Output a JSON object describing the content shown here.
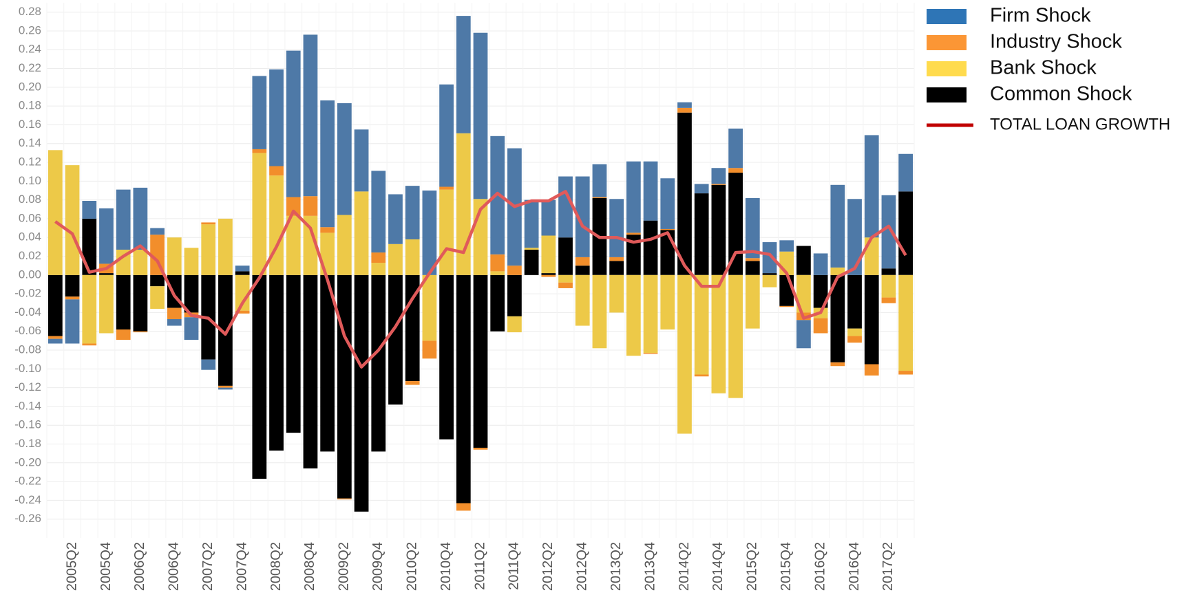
{
  "chart_data": {
    "type": "bar",
    "stacked": true,
    "grid": true,
    "categories": [
      null,
      "2005Q2",
      null,
      "2005Q4",
      null,
      "2006Q2",
      null,
      "2006Q4",
      null,
      "2007Q2",
      null,
      "2007Q4",
      null,
      "2008Q2",
      null,
      "2008Q4",
      null,
      "2009Q2",
      null,
      "2009Q4",
      null,
      "2010Q2",
      null,
      "2010Q4",
      null,
      "2011Q2",
      null,
      "2011Q4",
      null,
      "2012Q2",
      null,
      "2012Q4",
      null,
      "2013Q2",
      null,
      "2013Q4",
      null,
      "2014Q2",
      null,
      "2014Q4",
      null,
      "2015Q2",
      null,
      "2015Q4",
      null,
      "2016Q2",
      null,
      "2016Q4",
      null,
      "2017Q2",
      null
    ],
    "ylim": [
      -0.28,
      0.29
    ],
    "yticks": [
      {
        "value": -0.26,
        "label": "-0.26"
      },
      {
        "value": -0.24,
        "label": "-0.24"
      },
      {
        "value": -0.22,
        "label": "-0.22"
      },
      {
        "value": -0.2,
        "label": "-0.20"
      },
      {
        "value": -0.18,
        "label": "-0.18"
      },
      {
        "value": -0.16,
        "label": "-0.16"
      },
      {
        "value": -0.14,
        "label": "-0.14"
      },
      {
        "value": -0.12,
        "label": "-0.12"
      },
      {
        "value": -0.1,
        "label": "-0.10"
      },
      {
        "value": -0.08,
        "label": "-0.08"
      },
      {
        "value": -0.06,
        "label": "-0.06"
      },
      {
        "value": -0.04,
        "label": "-0.04"
      },
      {
        "value": -0.02,
        "label": "-0.02"
      },
      {
        "value": 0,
        "label": "0.00"
      },
      {
        "value": 0.02,
        "label": "0.02"
      },
      {
        "value": 0.04,
        "label": "0.04"
      },
      {
        "value": 0.06,
        "label": "0.06"
      },
      {
        "value": 0.08,
        "label": "0.08"
      },
      {
        "value": 0.1,
        "label": "0.10"
      },
      {
        "value": 0.12,
        "label": "0.12"
      },
      {
        "value": 0.14,
        "label": "0.14"
      },
      {
        "value": 0.16,
        "label": "0.16"
      },
      {
        "value": 0.18,
        "label": "0.18"
      },
      {
        "value": 0.2,
        "label": "0.20"
      },
      {
        "value": 0.22,
        "label": "0.22"
      },
      {
        "value": 0.24,
        "label": "0.24"
      },
      {
        "value": 0.26,
        "label": "0.26"
      },
      {
        "value": 0.28,
        "label": "0.28"
      }
    ],
    "series": [
      {
        "name": "Firm Shock",
        "color": "#4e79a7",
        "legend_color": "#2e75b6",
        "values": [
          -0.005,
          -0.047,
          0.019,
          0.059,
          0.064,
          0.066,
          0.007,
          -0.007,
          -0.024,
          -0.011,
          -0.002,
          0.006,
          0.078,
          0.103,
          0.156,
          0.172,
          0.135,
          0.119,
          0.066,
          0.087,
          0.053,
          0.057,
          0.09,
          0.109,
          0.125,
          0.177,
          0.126,
          0.125,
          0.051,
          0.038,
          0.065,
          0.086,
          0.035,
          0.062,
          0.076,
          0.063,
          0.054,
          0.006,
          0.01,
          0.017,
          0.042,
          0.064,
          0.033,
          0.012,
          -0.03,
          0.023,
          0.088,
          0.081,
          0.109,
          0.078,
          0.04
        ]
      },
      {
        "name": "Industry Shock",
        "color": "#f28e2b",
        "legend_color": "#fb9635",
        "values": [
          -0.003,
          -0.003,
          -0.002,
          0.01,
          -0.011,
          -0.001,
          0.043,
          -0.012,
          -0.005,
          0.002,
          -0.002,
          -0.003,
          0.004,
          0.01,
          0.02,
          0.021,
          0.006,
          -0.001,
          0,
          0.011,
          0,
          -0.004,
          -0.019,
          0.003,
          -0.008,
          -0.002,
          0.018,
          0.01,
          0,
          -0.002,
          -0.006,
          0.009,
          0.001,
          0.004,
          0.002,
          -0.001,
          0.001,
          0.005,
          -0.002,
          0.001,
          0.005,
          0.003,
          0,
          -0.001,
          -0.008,
          -0.016,
          -0.004,
          -0.007,
          -0.012,
          -0.006,
          -0.004
        ]
      },
      {
        "name": "Bank Shock",
        "color": "#edc948",
        "legend_color": "#ffdb4d",
        "values": [
          0.133,
          0.117,
          -0.073,
          -0.062,
          0.027,
          0.027,
          -0.024,
          0.04,
          0.029,
          0.054,
          0.06,
          -0.038,
          0.13,
          0.106,
          0.063,
          0.063,
          0.045,
          0.064,
          0.089,
          0.013,
          0.033,
          0.038,
          -0.07,
          0.091,
          0.151,
          0.081,
          0.004,
          -0.017,
          0.002,
          0.04,
          -0.008,
          -0.054,
          -0.078,
          -0.04,
          -0.086,
          -0.083,
          -0.058,
          -0.169,
          -0.106,
          -0.126,
          -0.131,
          -0.057,
          -0.013,
          0.025,
          -0.04,
          -0.011,
          0.008,
          -0.008,
          0.04,
          -0.024,
          -0.102
        ]
      },
      {
        "name": "Common Shock",
        "color": "#000000",
        "legend_color": "#000000",
        "values": [
          -0.065,
          -0.023,
          0.06,
          0.002,
          -0.058,
          -0.06,
          -0.012,
          -0.035,
          -0.04,
          -0.09,
          -0.118,
          0.004,
          -0.217,
          -0.187,
          -0.168,
          -0.206,
          -0.188,
          -0.238,
          -0.252,
          -0.188,
          -0.138,
          -0.113,
          0,
          -0.175,
          -0.243,
          -0.184,
          -0.06,
          -0.044,
          0.027,
          0.002,
          0.04,
          0.01,
          0.082,
          0.015,
          0.043,
          0.058,
          0.048,
          0.173,
          0.087,
          0.096,
          0.109,
          0.015,
          0.002,
          -0.033,
          0.031,
          -0.035,
          -0.093,
          -0.057,
          -0.095,
          0.007,
          0.089
        ]
      },
      {
        "name": "TOTAL LOAN GROWTH",
        "type": "line",
        "color": "#e05a5a",
        "legend_color": "#c00000",
        "values": [
          0.057,
          0.044,
          0.003,
          0.007,
          0.02,
          0.031,
          0.015,
          -0.022,
          -0.043,
          -0.046,
          -0.063,
          -0.03,
          -0.003,
          0.03,
          0.068,
          0.05,
          -0.005,
          -0.065,
          -0.098,
          -0.08,
          -0.055,
          -0.025,
          0.002,
          0.028,
          0.024,
          0.07,
          0.087,
          0.073,
          0.079,
          0.079,
          0.089,
          0.052,
          0.04,
          0.04,
          0.035,
          0.038,
          0.045,
          0.01,
          -0.012,
          -0.012,
          0.024,
          0.025,
          0.022,
          0.002,
          -0.046,
          -0.04,
          -0.002,
          0.007,
          0.04,
          0.052,
          0.021
        ]
      }
    ]
  }
}
